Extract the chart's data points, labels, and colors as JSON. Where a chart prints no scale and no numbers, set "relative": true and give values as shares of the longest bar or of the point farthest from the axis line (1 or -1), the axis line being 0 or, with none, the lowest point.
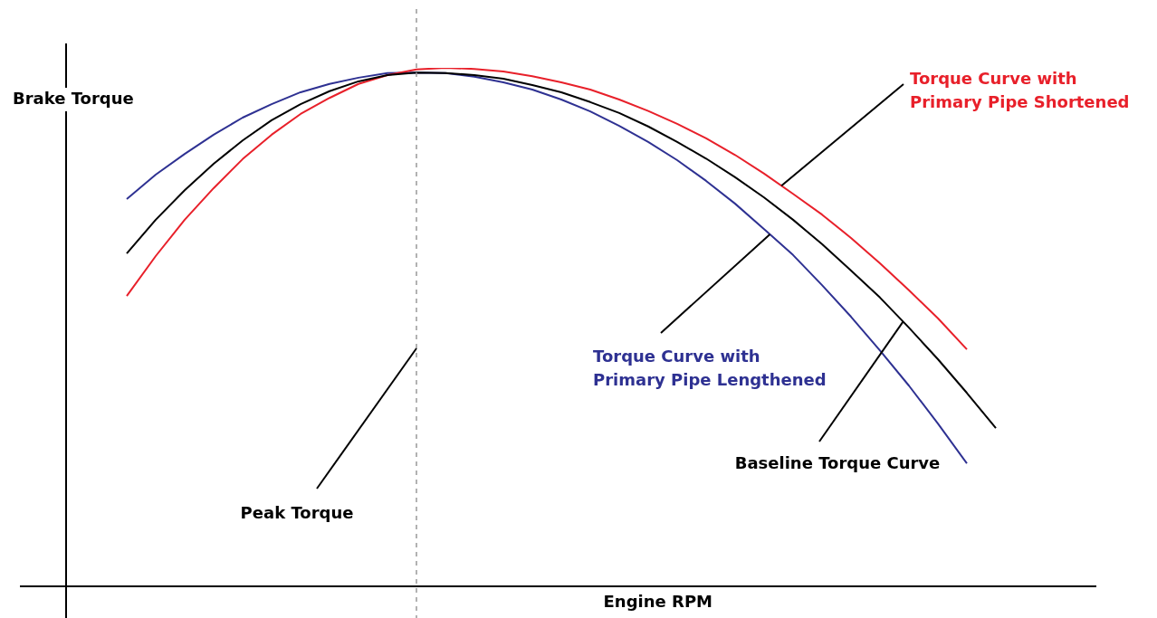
{
  "chart_data": {
    "type": "line",
    "relative": true,
    "xlabel": "Engine RPM",
    "ylabel": "Brake Torque",
    "categories": [
      null,
      null,
      null,
      null,
      null,
      null,
      null,
      null,
      null,
      null,
      null,
      null,
      null,
      null,
      null,
      null,
      null,
      null,
      null,
      null,
      null,
      null,
      null,
      null,
      null,
      null,
      null,
      null,
      null,
      null,
      null
    ],
    "series": [
      {
        "name": "Baseline Torque Curve",
        "color": "#000000",
        "values": [
          0.642,
          0.707,
          0.764,
          0.815,
          0.86,
          0.899,
          0.93,
          0.955,
          0.974,
          0.986,
          0.991,
          0.99,
          0.986,
          0.979,
          0.967,
          0.953,
          0.934,
          0.913,
          0.887,
          0.857,
          0.825,
          0.789,
          0.75,
          0.707,
          0.66,
          0.609,
          0.557,
          0.499,
          0.438,
          0.373,
          0.305
        ]
      },
      {
        "name": "Torque Curve with Primary Pipe Shortened",
        "color": "#e8202a",
        "values": [
          0.56,
          0.637,
          0.707,
          0.768,
          0.824,
          0.871,
          0.911,
          0.942,
          0.969,
          0.986,
          0.997,
          1,
          0.998,
          0.993,
          0.984,
          0.972,
          0.958,
          0.939,
          0.917,
          0.892,
          0.864,
          0.832,
          0.796,
          0.757,
          0.717,
          0.672,
          0.623,
          0.571,
          0.517,
          0.457,
          null
        ]
      },
      {
        "name": "Torque Curve with Primary Pipe Lengthened",
        "color": "#2e3192",
        "values": [
          0.747,
          0.794,
          0.834,
          0.871,
          0.904,
          0.93,
          0.953,
          0.969,
          0.981,
          0.99,
          0.991,
          0.99,
          0.983,
          0.972,
          0.958,
          0.939,
          0.916,
          0.888,
          0.857,
          0.822,
          0.782,
          0.738,
          0.689,
          0.639,
          0.581,
          0.52,
          0.455,
          0.387,
          0.314,
          0.237,
          null
        ]
      }
    ],
    "ref_lines": [
      {
        "axis": "x",
        "label": "Peak Torque",
        "color": "#999999",
        "line_style": "dashed"
      }
    ]
  }
}
